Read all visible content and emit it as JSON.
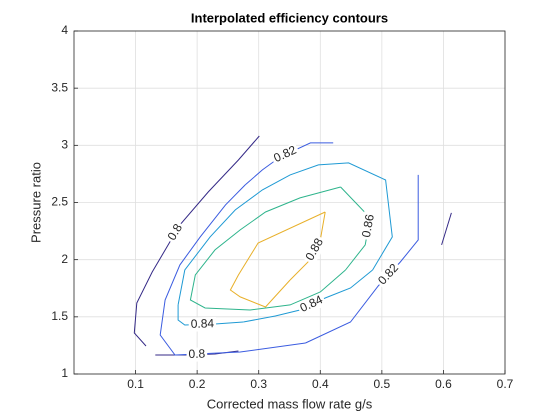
{
  "chart_data": {
    "type": "contour",
    "title": "Interpolated efficiency contours",
    "x_label": "Corrected mass flow rate g/s",
    "y_label": "Pressure ratio",
    "xlim": [
      0,
      0.7
    ],
    "ylim": [
      1,
      4
    ],
    "xticks": [
      0.1,
      0.2,
      0.3,
      0.4,
      0.5,
      0.6,
      0.7
    ],
    "yticks": [
      1,
      1.5,
      2,
      2.5,
      3,
      3.5,
      4
    ],
    "grid": true,
    "lines": [
      {
        "level": 0.8,
        "color": "#352a87",
        "label": true,
        "x": [
          0.301,
          0.267,
          0.218,
          0.172,
          0.127,
          0.102,
          0.098,
          0.117
        ],
        "y": [
          3.082,
          2.872,
          2.592,
          2.304,
          1.892,
          1.621,
          1.359,
          1.245
        ]
      },
      {
        "level": 0.8,
        "color": "#352a87",
        "label": true,
        "x": [
          0.132,
          0.18,
          0.229,
          0.267
        ],
        "y": [
          1.166,
          1.166,
          1.175,
          1.201
        ]
      },
      {
        "level": 0.8,
        "color": "#352a87",
        "label": false,
        "x": [
          0.597,
          0.613
        ],
        "y": [
          2.129,
          2.409
        ]
      },
      {
        "level": 0.82,
        "color": "#3b5ce0",
        "label": true,
        "x": [
          0.421,
          0.384,
          0.335,
          0.306,
          0.278
        ],
        "y": [
          3.021,
          3.021,
          2.899,
          2.785,
          2.654
        ]
      },
      {
        "level": 0.82,
        "color": "#3b5ce0",
        "label": false,
        "x": [
          0.278,
          0.246,
          0.205,
          0.172,
          0.148,
          0.14,
          0.164,
          0.27,
          0.376
        ],
        "y": [
          2.654,
          2.479,
          2.199,
          1.954,
          1.647,
          1.341,
          1.166,
          1.192,
          1.271
        ]
      },
      {
        "level": 0.82,
        "color": "#3b5ce0",
        "label": true,
        "x": [
          0.376,
          0.449,
          0.494,
          0.53,
          0.559,
          0.559
        ],
        "y": [
          1.271,
          1.455,
          1.77,
          1.98,
          2.172,
          2.741
        ]
      },
      {
        "level": 0.84,
        "color": "#1f9ad4",
        "label": true,
        "x": [
          0.169,
          0.169,
          0.18,
          0.229,
          0.275
        ],
        "y": [
          1.604,
          1.472,
          1.429,
          1.437,
          1.455
        ]
      },
      {
        "level": 0.84,
        "color": "#1f9ad4",
        "label": true,
        "x": [
          0.275,
          0.327,
          0.367,
          0.408,
          0.449,
          0.485
        ],
        "y": [
          1.455,
          1.507,
          1.56,
          1.665,
          1.752,
          1.91
        ]
      },
      {
        "level": 0.84,
        "color": "#1f9ad4",
        "label": false,
        "x": [
          0.485,
          0.517,
          0.506,
          0.446,
          0.397,
          0.351,
          0.306,
          0.262,
          0.221,
          0.18,
          0.169
        ],
        "y": [
          1.91,
          2.199,
          2.697,
          2.846,
          2.829,
          2.741,
          2.61,
          2.435,
          2.199,
          1.91,
          1.604
        ]
      },
      {
        "level": 0.86,
        "color": "#2eb48c",
        "label": true,
        "x": [
          0.433,
          0.481,
          0.473,
          0.441
        ],
        "y": [
          2.636,
          2.365,
          2.129,
          1.91
        ]
      },
      {
        "level": 0.86,
        "color": "#2eb48c",
        "label": false,
        "x": [
          0.441,
          0.4,
          0.351,
          0.286,
          0.213,
          0.189,
          0.197,
          0.229,
          0.27,
          0.311,
          0.367,
          0.433
        ],
        "y": [
          1.91,
          1.717,
          1.604,
          1.56,
          1.577,
          1.647,
          1.866,
          2.085,
          2.26,
          2.417,
          2.54,
          2.636
        ]
      },
      {
        "level": 0.88,
        "color": "#e8b02a",
        "label": true,
        "x": [
          0.408,
          0.4,
          0.38,
          0.351
        ],
        "y": [
          2.417,
          2.172,
          1.98,
          1.822
        ]
      },
      {
        "level": 0.88,
        "color": "#e8b02a",
        "label": false,
        "x": [
          0.351,
          0.311,
          0.27,
          0.254,
          0.267,
          0.299,
          0.408
        ],
        "y": [
          1.822,
          1.586,
          1.674,
          1.735,
          1.866,
          2.146,
          2.417
        ]
      }
    ]
  }
}
